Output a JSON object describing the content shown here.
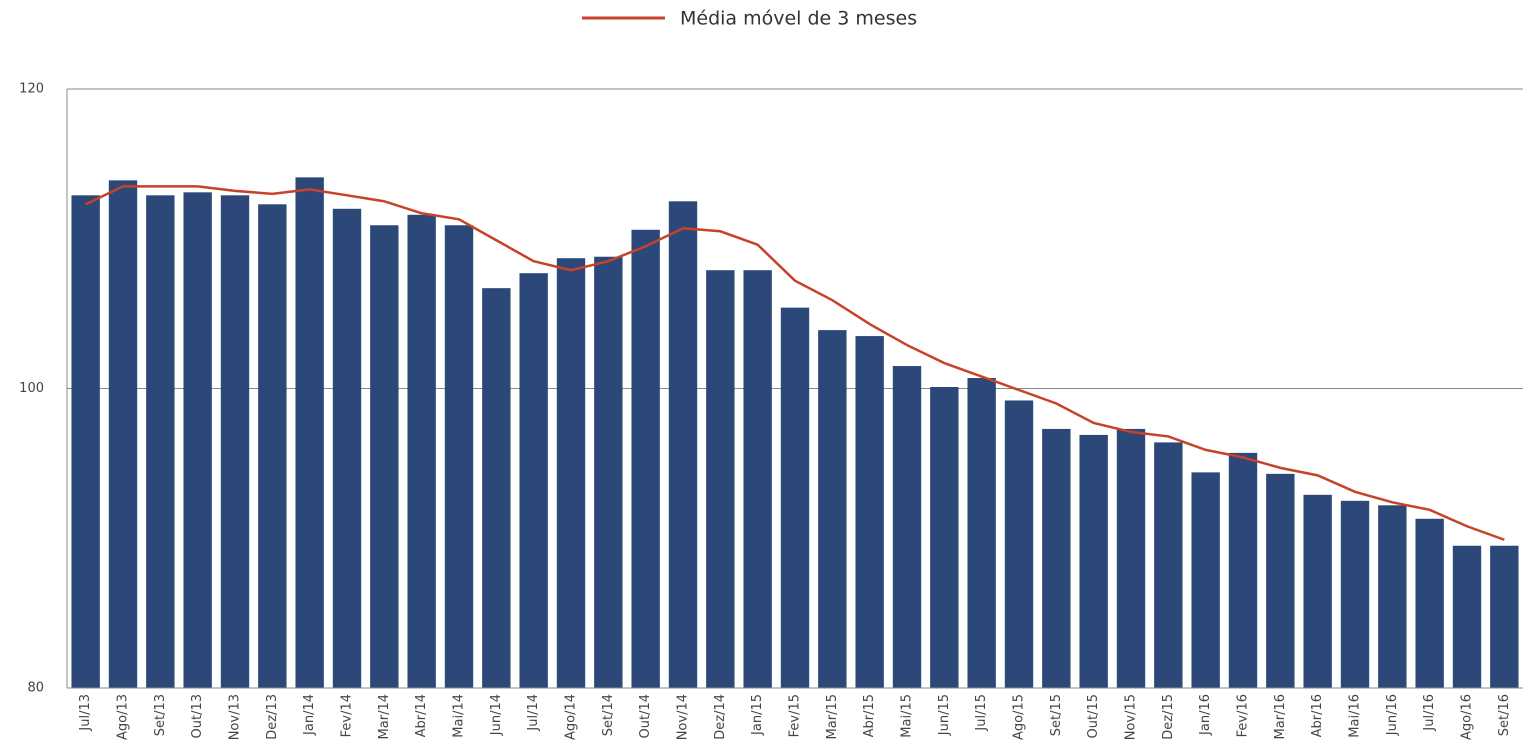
{
  "chart_data": {
    "type": "bar",
    "categories": [
      "Jul/13",
      "Ago/13",
      "Set/13",
      "Out/13",
      "Nov/13",
      "Dez/13",
      "Jan/14",
      "Fev/14",
      "Mar/14",
      "Abr/14",
      "Mai/14",
      "Jun/14",
      "Jul/14",
      "Ago/14",
      "Set/14",
      "Out/14",
      "Nov/14",
      "Dez/14",
      "Jan/15",
      "Fev/15",
      "Mar/15",
      "Abr/15",
      "Mai/15",
      "Jun/15",
      "Jul/15",
      "Ago/15",
      "Set/15",
      "Out/15",
      "Nov/15",
      "Dez/15",
      "Jan/16",
      "Fev/16",
      "Mar/16",
      "Abr/16",
      "Mai/16",
      "Jun/16",
      "Jul/16",
      "Ago/16",
      "Set/16"
    ],
    "series": [
      {
        "type": "bar",
        "color": "#2b4878",
        "values": [
          112.9,
          113.9,
          112.9,
          113.1,
          112.9,
          112.3,
          114.1,
          112.0,
          110.9,
          111.6,
          110.9,
          106.7,
          107.7,
          108.7,
          108.8,
          110.6,
          112.5,
          107.9,
          107.9,
          105.4,
          103.9,
          103.5,
          101.5,
          100.1,
          100.7,
          99.2,
          97.3,
          96.9,
          97.3,
          96.4,
          94.4,
          95.7,
          94.3,
          92.9,
          92.5,
          92.2,
          91.3,
          89.5,
          89.5
        ]
      },
      {
        "type": "line",
        "name": "Média móvel de 3 meses",
        "color": "#c8422a",
        "values": [
          112.3,
          113.5,
          113.5,
          113.5,
          113.2,
          113.0,
          113.3,
          112.9,
          112.5,
          111.7,
          111.3,
          109.9,
          108.5,
          107.9,
          108.5,
          109.5,
          110.7,
          110.5,
          109.6,
          107.2,
          105.9,
          104.3,
          102.9,
          101.7,
          100.8,
          99.9,
          99.0,
          97.7,
          97.1,
          96.8,
          95.9,
          95.4,
          94.7,
          94.2,
          93.1,
          92.4,
          91.9,
          90.8,
          89.9
        ]
      }
    ],
    "ylim": [
      80,
      120
    ],
    "yticks": [
      80,
      100,
      120
    ],
    "grid": true,
    "legend": "top"
  }
}
